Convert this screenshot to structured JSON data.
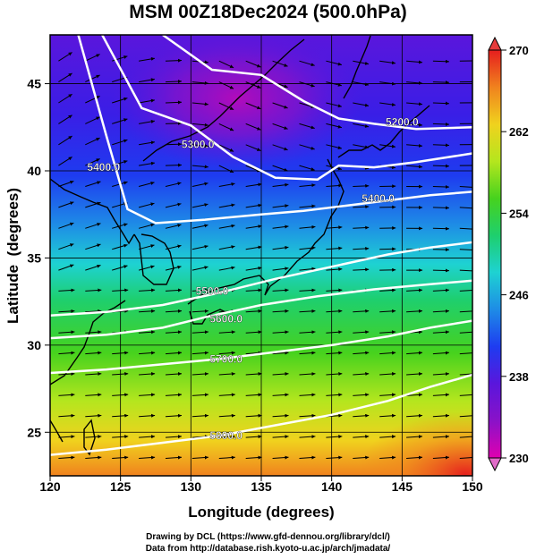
{
  "title": "MSM 00Z18Dec2024 (500.0hPa)",
  "chart_data": {
    "type": "heatmap",
    "xlabel": "Longitude (degrees)",
    "ylabel": "Latitude  (degrees)",
    "xlim": [
      120,
      150
    ],
    "ylim": [
      22.5,
      47.8
    ],
    "x_ticks": [
      "120",
      "125",
      "130",
      "135",
      "140",
      "145",
      "150"
    ],
    "y_ticks": [
      "25",
      "30",
      "35",
      "40",
      "45"
    ],
    "colorbar": {
      "ticks": [
        "230",
        "238",
        "246",
        "254",
        "262",
        "270"
      ],
      "range": [
        230,
        270
      ],
      "colors": [
        "#e000b0",
        "#8a12c8",
        "#5a16dc",
        "#1e3cf0",
        "#1e8ce6",
        "#1ed2d2",
        "#1ecf6e",
        "#46d21e",
        "#b4e61e",
        "#f0d21e",
        "#f0821e",
        "#e61e1e"
      ]
    },
    "contours": [
      {
        "label": "5200.0",
        "value": 5200,
        "lon": [
          128.0,
          131.5,
          135,
          138,
          140.5,
          143,
          146,
          150
        ],
        "lat": [
          47.8,
          45.8,
          45.5,
          44.0,
          43.0,
          42.7,
          42.4,
          42.5
        ]
      },
      {
        "label": "5300.0",
        "value": 5300,
        "lon": [
          123.7,
          126.5,
          130,
          133,
          136,
          139,
          140.5,
          143,
          146,
          150
        ],
        "lat": [
          47.8,
          43.6,
          42.6,
          40.8,
          39.6,
          39.5,
          40.3,
          40.2,
          40.5,
          41.0
        ]
      },
      {
        "label": "5400.0",
        "value": 5400,
        "lon": [
          122.0,
          124.0,
          125.5,
          127.5,
          131,
          135,
          138,
          141,
          144,
          147,
          150
        ],
        "lat": [
          47.8,
          42.0,
          37.8,
          37.0,
          37.2,
          37.5,
          37.7,
          38.0,
          38.3,
          38.6,
          38.8
        ]
      },
      {
        "label": "5500.0",
        "value": 5500,
        "lon": [
          120,
          124,
          128,
          132,
          136,
          140,
          144,
          147,
          150
        ],
        "lat": [
          31.7,
          31.9,
          32.3,
          33.0,
          33.8,
          34.5,
          35.2,
          35.6,
          35.9
        ]
      },
      {
        "label": "5600.0",
        "value": 5600,
        "lon": [
          120,
          124,
          128,
          131,
          135,
          139,
          143,
          147,
          150
        ],
        "lat": [
          30.4,
          30.6,
          31.0,
          31.6,
          32.3,
          32.8,
          33.2,
          33.5,
          33.7
        ]
      },
      {
        "label": "5700.0",
        "value": 5700,
        "lon": [
          120,
          124,
          128,
          132,
          136,
          140,
          144,
          147,
          150
        ],
        "lat": [
          28.4,
          28.6,
          28.9,
          29.2,
          29.6,
          30.0,
          30.5,
          31.0,
          31.4
        ]
      },
      {
        "label": "5800.0",
        "value": 5800,
        "lon": [
          120,
          124,
          128,
          132,
          136,
          140,
          144,
          147,
          150
        ],
        "lat": [
          23.7,
          24.0,
          24.4,
          24.8,
          25.4,
          26.0,
          26.8,
          27.6,
          28.3
        ]
      }
    ],
    "label_positions": [
      {
        "label": "5200.0",
        "lon": 145.0,
        "lat": 42.6
      },
      {
        "label": "5300.0",
        "lon": 130.5,
        "lat": 41.3
      },
      {
        "label": "5400.0",
        "lon": 123.8,
        "lat": 40.0
      },
      {
        "label": "5400.0",
        "lon": 143.3,
        "lat": 38.2
      },
      {
        "label": "5500.0",
        "lon": 131.5,
        "lat": 32.9
      },
      {
        "label": "5600.0",
        "lon": 132.5,
        "lat": 31.3
      },
      {
        "label": "5700.0",
        "lon": 132.5,
        "lat": 29.0
      },
      {
        "label": "5800.0",
        "lon": 132.5,
        "lat": 24.6
      }
    ]
  },
  "credits": {
    "line1": "Drawing by DCL (https://www.gfd-dennou.org/library/dcl/)",
    "line2": "Data from http://database.rish.kyoto-u.ac.jp/arch/jmadata/"
  }
}
